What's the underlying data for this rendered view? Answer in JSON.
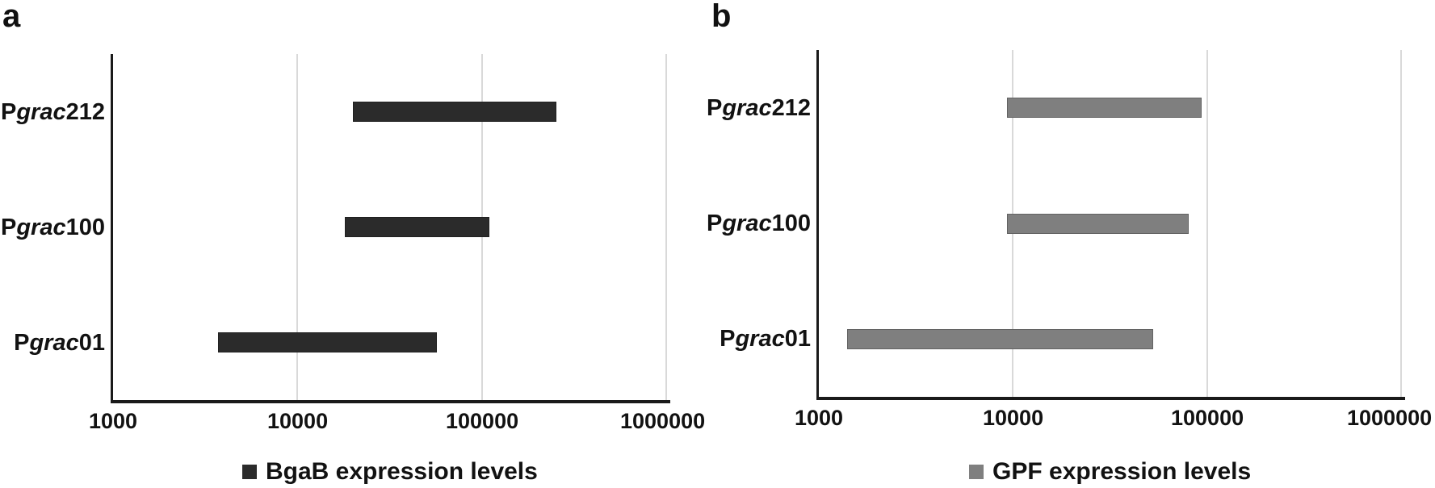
{
  "figure": {
    "background": "#ffffff",
    "text_color": "#121212",
    "axis_color": "#1a1a1a",
    "gridline_color": "#d9d9d9"
  },
  "chart_data": [
    {
      "type": "bar",
      "subtype": "horizontal-range-bars",
      "panel_label": "a",
      "x_scale": "log10",
      "xlim": [
        1000,
        1000000
      ],
      "x_ticks": [
        {
          "value": 1000,
          "label": "1000"
        },
        {
          "value": 10000,
          "label": "10000"
        },
        {
          "value": 100000,
          "label": "100000"
        },
        {
          "value": 1000000,
          "label": "1000000"
        }
      ],
      "categories": [
        {
          "id": "pgrac212",
          "pre": "P",
          "italic": "grac",
          "post": "212"
        },
        {
          "id": "pgrac100",
          "pre": "P",
          "italic": "grac",
          "post": "100"
        },
        {
          "id": "pgrac01",
          "pre": "P",
          "italic": "grac",
          "post": "01"
        }
      ],
      "series": [
        {
          "name": "BgaB expression levels",
          "color": "#2b2b2b",
          "ranges": [
            [
              20000,
              255000
            ],
            [
              18000,
              110000
            ],
            [
              3700,
              57000
            ]
          ]
        }
      ],
      "legend": {
        "label": "BgaB expression levels",
        "swatch_color": "#2b2b2b",
        "position": "bottom-center"
      },
      "grid": {
        "show": true,
        "color": "#d9d9d9"
      }
    },
    {
      "type": "bar",
      "subtype": "horizontal-range-bars",
      "panel_label": "b",
      "x_scale": "log10",
      "xlim": [
        1000,
        1000000
      ],
      "x_ticks": [
        {
          "value": 1000,
          "label": "1000"
        },
        {
          "value": 10000,
          "label": "10000"
        },
        {
          "value": 100000,
          "label": "100000"
        },
        {
          "value": 1000000,
          "label": "1000000"
        }
      ],
      "categories": [
        {
          "id": "pgrac212",
          "pre": "P",
          "italic": "grac",
          "post": "212"
        },
        {
          "id": "pgrac100",
          "pre": "P",
          "italic": "grac",
          "post": "100"
        },
        {
          "id": "pgrac01",
          "pre": "P",
          "italic": "grac",
          "post": "01"
        }
      ],
      "series": [
        {
          "name": "GPF expression levels",
          "color": "#7f7f7f",
          "ranges": [
            [
              9300,
              94000
            ],
            [
              9300,
              80000
            ],
            [
              1400,
              53000
            ]
          ]
        }
      ],
      "legend": {
        "label": "GPF expression levels",
        "swatch_color": "#7f7f7f",
        "position": "bottom-center"
      },
      "grid": {
        "show": true,
        "color": "#d9d9d9"
      }
    }
  ]
}
